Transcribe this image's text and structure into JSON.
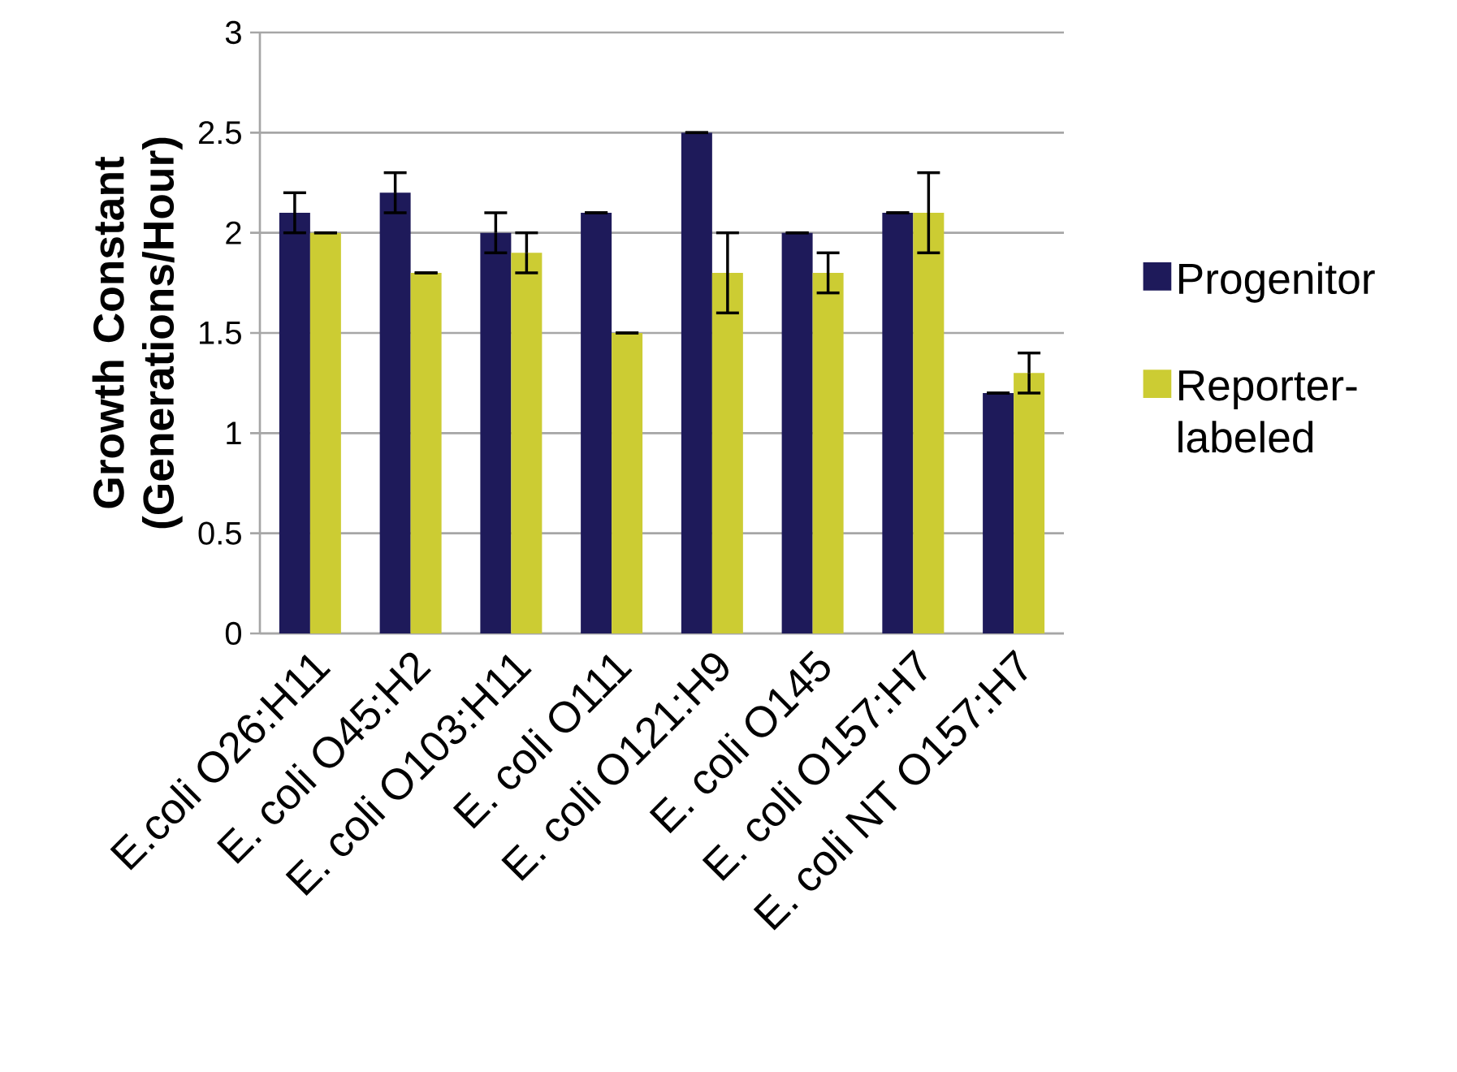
{
  "chart_data": {
    "type": "bar",
    "ylabel": "Growth Constant (Generations/Hour)",
    "categories": [
      "E.coli O26:H11",
      "E. coli O45:H2",
      "E. coli O103:H11",
      "E. coli O111",
      "E. coli O121:H9",
      "E. coli O145",
      "E. coli O157:H7",
      "E. coli NT O157:H7"
    ],
    "series": [
      {
        "name": "Progenitor",
        "color": "#1e1a5a",
        "values": [
          2.1,
          2.2,
          2.0,
          2.1,
          2.5,
          2.0,
          2.1,
          1.2
        ],
        "errors": [
          0.1,
          0.1,
          0.1,
          0,
          0,
          0,
          0,
          0
        ]
      },
      {
        "name": "Reporter-labeled",
        "color": "#cccc33",
        "values": [
          2.0,
          1.8,
          1.9,
          1.5,
          1.8,
          1.8,
          2.1,
          1.3
        ],
        "errors": [
          0,
          0,
          0.1,
          0,
          0.2,
          0.1,
          0.2,
          0.1
        ]
      }
    ],
    "ylim": [
      0,
      3
    ],
    "yticks": [
      0,
      0.5,
      1,
      1.5,
      2,
      2.5,
      3
    ],
    "grid": "y",
    "legend": "right"
  }
}
